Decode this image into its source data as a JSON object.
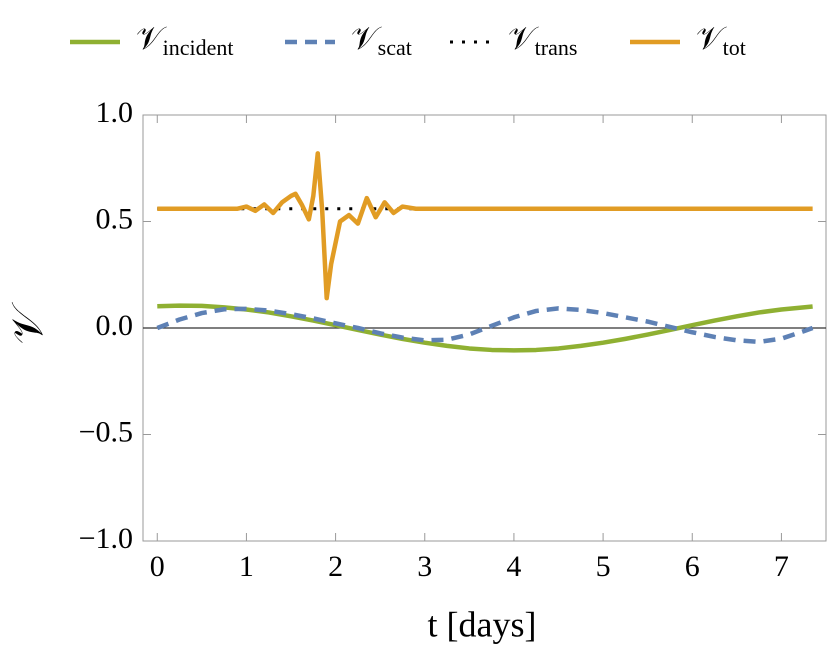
{
  "chart_data": {
    "type": "line",
    "xlabel": "t [days]",
    "ylabel": "𝒱",
    "xlim": [
      -0.16,
      7.5
    ],
    "ylim": [
      -1,
      1
    ],
    "xticks": [
      0,
      1,
      2,
      3,
      4,
      5,
      6,
      7
    ],
    "yticks": [
      {
        "value": -1,
        "label": "−1.0"
      },
      {
        "value": -0.5,
        "label": "−0.5"
      },
      {
        "value": 0,
        "label": "0.0"
      },
      {
        "value": 0.5,
        "label": "0.5"
      },
      {
        "value": 1,
        "label": "1.0"
      }
    ],
    "x": [
      0,
      0.25,
      0.5,
      0.75,
      1,
      1.25,
      1.5,
      1.75,
      2,
      2.25,
      2.5,
      2.75,
      3,
      3.25,
      3.5,
      3.75,
      4,
      4.25,
      4.5,
      4.75,
      5,
      5.25,
      5.5,
      5.75,
      6,
      6.25,
      6.5,
      6.75,
      7,
      7.25,
      7.35
    ],
    "series": [
      {
        "name": "𝒱incident",
        "color": "#8fb032",
        "dash": "solid",
        "values": [
          0.102,
          0.105,
          0.104,
          0.097,
          0.087,
          0.073,
          0.055,
          0.035,
          0.013,
          -0.009,
          -0.031,
          -0.051,
          -0.069,
          -0.084,
          -0.096,
          -0.103,
          -0.105,
          -0.103,
          -0.096,
          -0.084,
          -0.069,
          -0.051,
          -0.031,
          -0.009,
          0.013,
          0.035,
          0.055,
          0.073,
          0.087,
          0.097,
          0.101
        ]
      },
      {
        "name": "𝒱scat",
        "color": "#5e81b5",
        "dash": "dashed",
        "values": [
          0,
          0.04,
          0.07,
          0.088,
          0.09,
          0.082,
          0.065,
          0.045,
          0.022,
          0,
          -0.025,
          -0.045,
          -0.058,
          -0.055,
          -0.03,
          0.01,
          0.05,
          0.08,
          0.092,
          0.085,
          0.07,
          0.05,
          0.03,
          0.005,
          -0.02,
          -0.042,
          -0.058,
          -0.065,
          -0.05,
          -0.015,
          0
        ]
      },
      {
        "name": "𝒱trans",
        "color": "#000000",
        "dash": "dotted",
        "x": [
          0,
          7.35
        ],
        "values": [
          0.56,
          0.56
        ]
      },
      {
        "name": "𝒱tot",
        "color": "#e19c24",
        "dash": "solid",
        "x": [
          0,
          0.9,
          1,
          1.1,
          1.2,
          1.3,
          1.4,
          1.5,
          1.55,
          1.62,
          1.7,
          1.75,
          1.8,
          1.85,
          1.9,
          1.95,
          2.05,
          2.15,
          2.25,
          2.35,
          2.45,
          2.55,
          2.65,
          2.75,
          2.9,
          7.35
        ],
        "values": [
          0.56,
          0.56,
          0.57,
          0.55,
          0.58,
          0.54,
          0.59,
          0.62,
          0.63,
          0.58,
          0.51,
          0.62,
          0.82,
          0.55,
          0.14,
          0.3,
          0.5,
          0.53,
          0.49,
          0.61,
          0.52,
          0.59,
          0.54,
          0.57,
          0.56,
          0.56
        ]
      }
    ]
  }
}
